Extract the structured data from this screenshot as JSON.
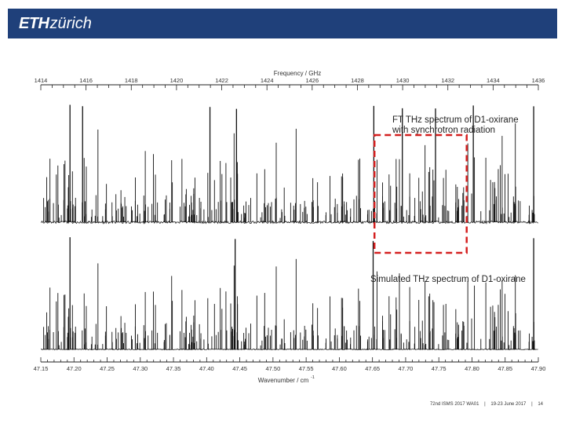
{
  "header": {
    "logo_eth": "ETH",
    "logo_zurich": "zürich"
  },
  "footer": {
    "conference": "72nd ISMS 2017 WA01",
    "sep1": "|",
    "dates": "19-23 June 2017",
    "sep2": "|",
    "page": "14"
  },
  "chart_data": {
    "type": "line",
    "top_axis": {
      "label": "Frequency / GHz",
      "ticks": [
        "1414",
        "1416",
        "1418",
        "1420",
        "1422",
        "1424",
        "1426",
        "1428",
        "1430",
        "1432",
        "1434",
        "1436"
      ],
      "range": [
        1414,
        1436
      ]
    },
    "bottom_axis": {
      "label": "Wavenumber / cm",
      "label_superscript": "-1",
      "ticks": [
        "47.15",
        "47.20",
        "47.25",
        "47.30",
        "47.35",
        "47.40",
        "47.45",
        "47.50",
        "47.55",
        "47.60",
        "47.65",
        "47.70",
        "47.75",
        "47.80",
        "47.85",
        "47.90"
      ],
      "range": [
        47.15,
        47.9
      ]
    },
    "series": [
      {
        "name": "FT THz spectrum of D1-oxirane with synchrotron radiation",
        "name_line1": "FT THz spectrum of D1-oxirane",
        "name_line2": "with synchrotron radiation",
        "color": "#111111",
        "strong_peaks_cm": [
          47.194,
          47.213,
          47.405,
          47.445,
          47.652,
          47.695,
          47.745,
          47.802,
          47.893
        ]
      },
      {
        "name": "Simulated THz spectrum of D1-oxirane",
        "color": "#111111",
        "strong_peaks_cm": [
          47.194,
          47.443,
          47.651,
          47.893
        ]
      }
    ],
    "highlight_box": {
      "x_range_cm": [
        47.653,
        47.792
      ],
      "color": "#d42020",
      "style": "dashed"
    },
    "grid": false
  }
}
